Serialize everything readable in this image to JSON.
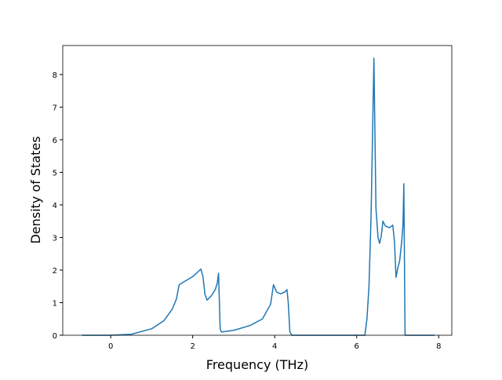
{
  "chart_data": {
    "type": "line",
    "x_label": "Frequency (THz)",
    "y_label": "Density of States",
    "x": [
      -0.7,
      0,
      0.5,
      1.0,
      1.3,
      1.5,
      1.6,
      1.67,
      1.8,
      2.0,
      2.2,
      2.25,
      2.3,
      2.35,
      2.45,
      2.55,
      2.6,
      2.63,
      2.67,
      2.7,
      3.0,
      3.4,
      3.7,
      3.9,
      3.97,
      4.05,
      4.15,
      4.25,
      4.3,
      4.33,
      4.37,
      4.42,
      6.2,
      6.25,
      6.3,
      6.35,
      6.42,
      6.47,
      6.52,
      6.56,
      6.6,
      6.64,
      6.7,
      6.8,
      6.88,
      6.92,
      6.96,
      7.0,
      7.05,
      7.1,
      7.13,
      7.15,
      7.18,
      7.9
    ],
    "series": [
      {
        "color": "#1f77b4",
        "values": [
          0,
          0,
          0.03,
          0.2,
          0.45,
          0.8,
          1.1,
          1.55,
          1.65,
          1.8,
          2.03,
          1.8,
          1.25,
          1.08,
          1.2,
          1.4,
          1.6,
          1.9,
          0.2,
          0.1,
          0.15,
          0.3,
          0.5,
          0.95,
          1.55,
          1.32,
          1.27,
          1.33,
          1.4,
          1.0,
          0.1,
          0,
          0,
          0.5,
          1.5,
          3.6,
          8.5,
          3.9,
          3.0,
          2.82,
          3.05,
          3.5,
          3.35,
          3.3,
          3.38,
          2.9,
          1.78,
          2.05,
          2.3,
          2.9,
          3.4,
          4.65,
          0,
          0
        ]
      }
    ],
    "xlim": [
      -1.17,
      8.32
    ],
    "ylim": [
      0,
      8.89
    ],
    "xticks": [
      0,
      2,
      4,
      6,
      8
    ],
    "yticks": [
      0,
      1,
      2,
      3,
      4,
      5,
      6,
      7,
      8
    ],
    "grid": false
  }
}
